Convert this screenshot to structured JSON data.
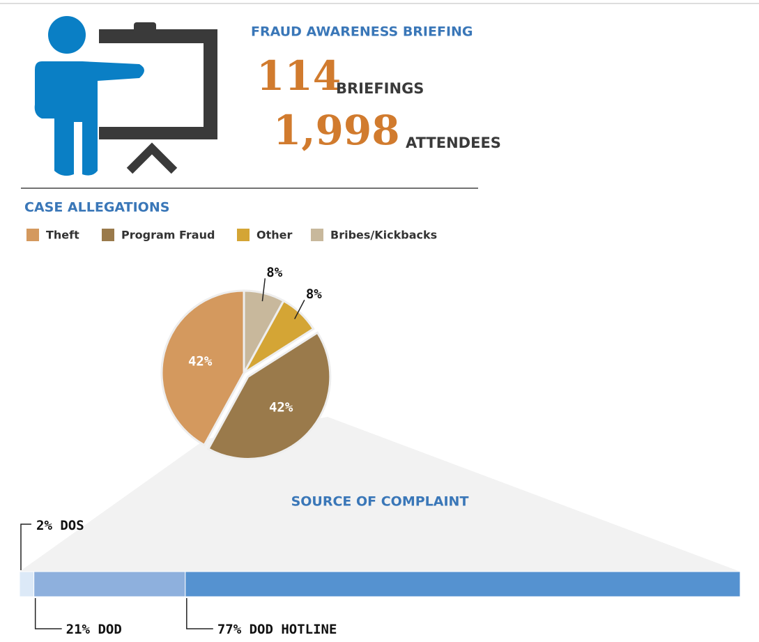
{
  "briefing": {
    "title": "FRAUD AWARENESS BRIEFING",
    "briefings": {
      "count": "114",
      "label": "BRIEFINGS"
    },
    "attendees": {
      "count": "1,998",
      "label": "ATTENDEES"
    }
  },
  "chart_data": [
    {
      "type": "pie",
      "title": "CASE ALLEGATIONS",
      "categories": [
        "Theft",
        "Program Fraud",
        "Other",
        "Bribes/Kickbacks"
      ],
      "values": [
        42,
        42,
        8,
        8
      ],
      "value_labels": [
        "42%",
        "42%",
        "8%",
        "8%"
      ],
      "colors": [
        "#d4995e",
        "#9a7a4b",
        "#d4a535",
        "#c8b89c"
      ]
    },
    {
      "type": "stacked-bar",
      "title": "SOURCE OF COMPLAINT",
      "categories": [
        "DOS",
        "DOD",
        "DOD HOTLINE"
      ],
      "values": [
        2,
        21,
        77
      ],
      "value_labels": [
        "2%",
        "21%",
        "77%"
      ],
      "colors": [
        "#dce9f7",
        "#8eb0dd",
        "#5592d0"
      ]
    }
  ]
}
